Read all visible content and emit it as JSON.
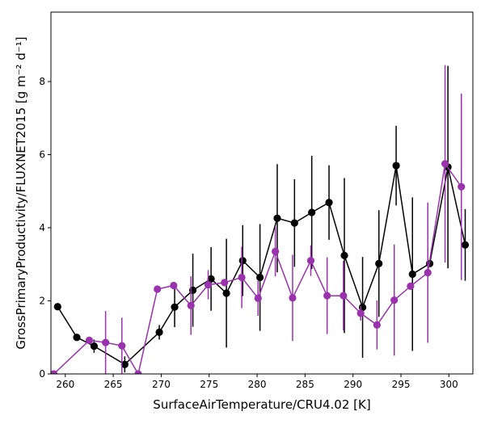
{
  "chart_data": {
    "type": "line",
    "title": "",
    "xlabel": "SurfaceAirTemperature/CRU4.02 [K]",
    "ylabel": "GrossPrimaryProductivity/FLUXNET2015 [g m⁻² d⁻¹]",
    "xlim": [
      258.5,
      302.5
    ],
    "ylim": [
      0,
      9.9
    ],
    "xticks": [
      260,
      265,
      270,
      275,
      280,
      285,
      290,
      295,
      300
    ],
    "yticks": [
      0,
      2,
      4,
      6,
      8
    ],
    "legend": "none",
    "grid": false,
    "series": [
      {
        "name": "black",
        "color": "#000000",
        "points": [
          {
            "x": 259.2,
            "y": 1.84,
            "err": 0.0
          },
          {
            "x": 261.2,
            "y": 1.0,
            "err": 0.0
          },
          {
            "x": 263.0,
            "y": 0.76,
            "err": 0.18
          },
          {
            "x": 266.2,
            "y": 0.26,
            "err": 0.22
          },
          {
            "x": 269.8,
            "y": 1.14,
            "err": 0.2
          },
          {
            "x": 271.4,
            "y": 1.83,
            "err": 0.55
          },
          {
            "x": 273.3,
            "y": 2.29,
            "err": 1.0
          },
          {
            "x": 275.2,
            "y": 2.6,
            "err": 0.87
          },
          {
            "x": 276.8,
            "y": 2.21,
            "err": 1.49
          },
          {
            "x": 278.5,
            "y": 3.1,
            "err": 0.97
          },
          {
            "x": 280.3,
            "y": 2.64,
            "err": 1.46
          },
          {
            "x": 282.1,
            "y": 4.26,
            "err": 1.48
          },
          {
            "x": 283.9,
            "y": 4.13,
            "err": 1.2
          },
          {
            "x": 285.7,
            "y": 4.42,
            "err": 1.55
          },
          {
            "x": 287.5,
            "y": 4.69,
            "err": 1.02
          },
          {
            "x": 289.1,
            "y": 3.24,
            "err": 2.12
          },
          {
            "x": 291.0,
            "y": 1.82,
            "err": 1.38
          },
          {
            "x": 292.7,
            "y": 3.02,
            "err": 1.46
          },
          {
            "x": 294.5,
            "y": 5.7,
            "err": 1.09
          },
          {
            "x": 296.2,
            "y": 2.73,
            "err": 2.1
          },
          {
            "x": 298.0,
            "y": 3.02,
            "err": 0.0
          },
          {
            "x": 299.9,
            "y": 5.66,
            "err": 2.77
          },
          {
            "x": 301.7,
            "y": 3.53,
            "err": 0.98
          }
        ]
      },
      {
        "name": "purple",
        "color": "#9932ac",
        "points": [
          {
            "x": 258.8,
            "y": 0.0,
            "err": 0.0
          },
          {
            "x": 262.5,
            "y": 0.92,
            "err": 0.0
          },
          {
            "x": 264.2,
            "y": 0.86,
            "err": 0.86
          },
          {
            "x": 265.9,
            "y": 0.77,
            "err": 0.77
          },
          {
            "x": 267.6,
            "y": 0.0,
            "err": 0.0
          },
          {
            "x": 269.6,
            "y": 2.32,
            "err": 0.0
          },
          {
            "x": 271.3,
            "y": 2.42,
            "err": 0.0
          },
          {
            "x": 273.1,
            "y": 1.87,
            "err": 0.8
          },
          {
            "x": 274.9,
            "y": 2.44,
            "err": 0.4
          },
          {
            "x": 276.6,
            "y": 2.5,
            "err": 0.0
          },
          {
            "x": 278.4,
            "y": 2.64,
            "err": 0.84
          },
          {
            "x": 280.1,
            "y": 2.07,
            "err": 0.48
          },
          {
            "x": 281.9,
            "y": 3.35,
            "err": 0.68
          },
          {
            "x": 283.7,
            "y": 2.08,
            "err": 1.18
          },
          {
            "x": 285.6,
            "y": 3.1,
            "err": 0.42
          },
          {
            "x": 287.3,
            "y": 2.14,
            "err": 1.05
          },
          {
            "x": 289.0,
            "y": 2.14,
            "err": 0.95
          },
          {
            "x": 290.8,
            "y": 1.66,
            "err": 0.2
          },
          {
            "x": 292.5,
            "y": 1.34,
            "err": 0.67
          },
          {
            "x": 294.3,
            "y": 2.02,
            "err": 1.52
          },
          {
            "x": 296.0,
            "y": 2.4,
            "err": 0.0
          },
          {
            "x": 297.8,
            "y": 2.77,
            "err": 1.92
          },
          {
            "x": 299.6,
            "y": 5.75,
            "err": 2.7
          },
          {
            "x": 301.3,
            "y": 5.12,
            "err": 2.55
          }
        ]
      }
    ]
  }
}
